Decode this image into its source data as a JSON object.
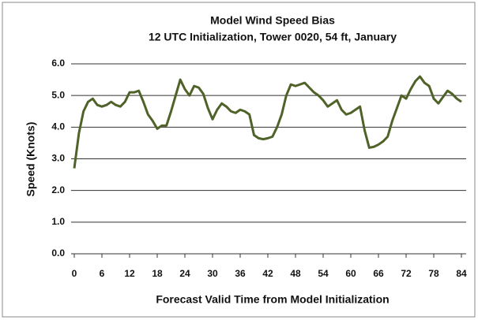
{
  "chart_data": {
    "type": "line",
    "title": "Model Wind Speed Bias",
    "subtitle": "12 UTC Initialization, Tower 0020, 54 ft, January",
    "x_label": "Forecast Valid Time from Model Initialization",
    "y_label": "Speed (Knots)",
    "x": [
      0,
      1,
      2,
      3,
      4,
      5,
      6,
      7,
      8,
      9,
      10,
      11,
      12,
      13,
      14,
      15,
      16,
      17,
      18,
      19,
      20,
      21,
      22,
      23,
      24,
      25,
      26,
      27,
      28,
      29,
      30,
      31,
      32,
      33,
      34,
      35,
      36,
      37,
      38,
      39,
      40,
      41,
      42,
      43,
      44,
      45,
      46,
      47,
      48,
      49,
      50,
      51,
      52,
      53,
      54,
      55,
      56,
      57,
      58,
      59,
      60,
      61,
      62,
      63,
      64,
      65,
      66,
      67,
      68,
      69,
      70,
      71,
      72,
      73,
      74,
      75,
      76,
      77,
      78,
      79,
      80,
      81,
      82,
      83,
      84
    ],
    "series": [
      {
        "color": "#4f6228",
        "values": [
          2.7,
          3.8,
          4.5,
          4.8,
          4.9,
          4.7,
          4.65,
          4.7,
          4.8,
          4.7,
          4.65,
          4.8,
          5.1,
          5.1,
          5.15,
          4.8,
          4.4,
          4.2,
          3.95,
          4.05,
          4.05,
          4.5,
          5.0,
          5.5,
          5.2,
          5.0,
          5.3,
          5.25,
          5.05,
          4.6,
          4.25,
          4.55,
          4.75,
          4.65,
          4.5,
          4.45,
          4.55,
          4.5,
          4.4,
          3.75,
          3.65,
          3.62,
          3.65,
          3.7,
          4.0,
          4.4,
          5.0,
          5.35,
          5.3,
          5.35,
          5.4,
          5.25,
          5.1,
          5.0,
          4.85,
          4.65,
          4.75,
          4.85,
          4.55,
          4.4,
          4.45,
          4.55,
          4.65,
          3.9,
          3.35,
          3.38,
          3.45,
          3.55,
          3.7,
          4.2,
          4.6,
          5.0,
          4.9,
          5.2,
          5.45,
          5.6,
          5.4,
          5.3,
          4.9,
          4.75,
          4.95,
          5.15,
          5.05,
          4.9,
          4.8
        ]
      }
    ],
    "xlim": [
      0,
      84
    ],
    "xticks": [
      0,
      6,
      12,
      18,
      24,
      30,
      36,
      42,
      48,
      54,
      60,
      66,
      72,
      78,
      84
    ],
    "ylim": [
      0,
      6
    ],
    "yticks": [
      {
        "value": 0,
        "label": "0.0"
      },
      {
        "value": 1,
        "label": "1.0"
      },
      {
        "value": 2,
        "label": "2.0"
      },
      {
        "value": 3,
        "label": "3.0"
      },
      {
        "value": 4,
        "label": "4.0"
      },
      {
        "value": 5,
        "label": "5.0"
      },
      {
        "value": 6,
        "label": "6.0"
      }
    ],
    "grid": true
  }
}
